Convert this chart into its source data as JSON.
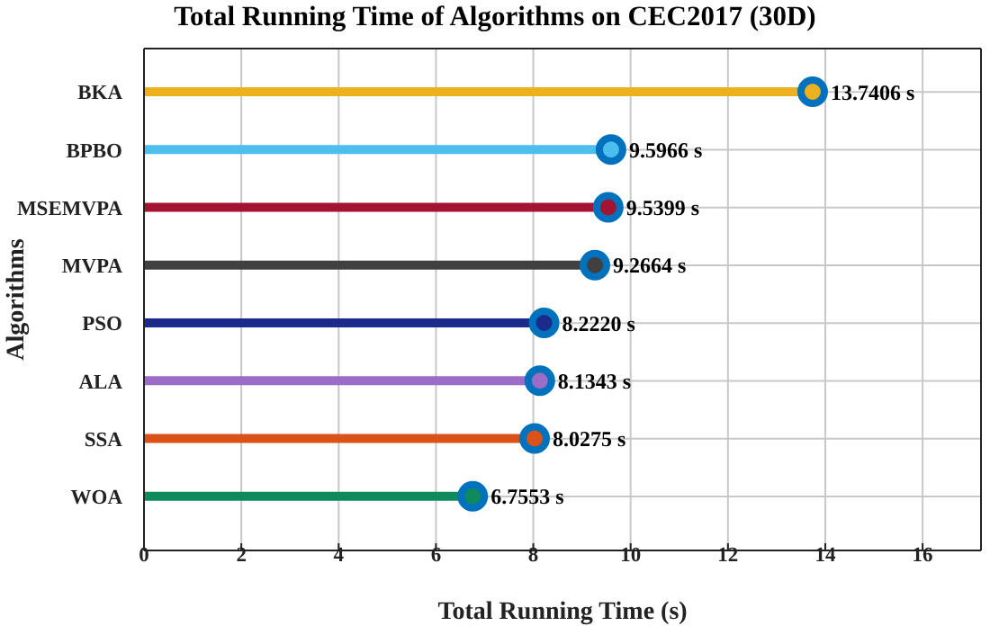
{
  "chart_data": {
    "type": "lollipop",
    "orientation": "horizontal",
    "title": "Total Running Time of Algorithms on CEC2017 (30D)",
    "xlabel": "Total Running Time (s)",
    "ylabel": "Algorithms",
    "categories": [
      "BKA",
      "BPBO",
      "MSEMVPA",
      "MVPA",
      "PSO",
      "ALA",
      "SSA",
      "WOA"
    ],
    "values": [
      13.7406,
      9.5966,
      9.5399,
      9.2664,
      8.222,
      8.1343,
      8.0275,
      6.7553
    ],
    "value_labels": [
      "13.7406 s",
      "9.5966 s",
      "9.5399 s",
      "9.2664 s",
      "8.2220 s",
      "8.1343 s",
      "8.0275 s",
      "6.7553 s"
    ],
    "colors": [
      "#edb120",
      "#4dbeee",
      "#a2142f",
      "#404040",
      "#1c2a8c",
      "#9b6dc6",
      "#d95319",
      "#0e8a5c"
    ],
    "xlim": [
      0,
      17.2
    ],
    "xticks": [
      0,
      2,
      4,
      6,
      8,
      10,
      12,
      14,
      16
    ],
    "grid": true,
    "marker": "circle"
  }
}
